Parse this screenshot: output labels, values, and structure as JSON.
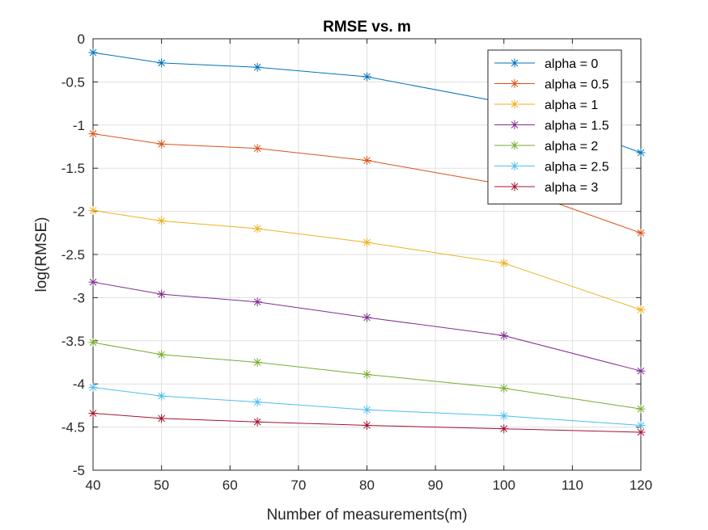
{
  "chart_data": {
    "type": "line",
    "title": "RMSE vs. m",
    "xlabel": "Number of measurements(m)",
    "ylabel": "log(RMSE)",
    "xlim": [
      40,
      120
    ],
    "ylim": [
      -5,
      0
    ],
    "xticks": [
      40,
      50,
      60,
      70,
      80,
      90,
      100,
      110,
      120
    ],
    "yticks": [
      0,
      -0.5,
      -1,
      -1.5,
      -2,
      -2.5,
      -3,
      -3.5,
      -4,
      -4.5,
      -5
    ],
    "xtick_labels": [
      "40",
      "50",
      "60",
      "70",
      "80",
      "90",
      "100",
      "110",
      "120"
    ],
    "ytick_labels": [
      "0",
      "-0.5",
      "-1",
      "-1.5",
      "-2",
      "-2.5",
      "-3",
      "-3.5",
      "-4",
      "-4.5",
      "-5"
    ],
    "grid": true,
    "legend": "top-right",
    "marker": "asterisk",
    "x": [
      40,
      50,
      64,
      80,
      100,
      120
    ],
    "series": [
      {
        "name": "alpha = 0",
        "color": "#0072BD",
        "values": [
          -0.16,
          -0.28,
          -0.33,
          -0.44,
          -0.74,
          -1.32
        ]
      },
      {
        "name": "alpha = 0.5",
        "color": "#D95319",
        "values": [
          -1.1,
          -1.22,
          -1.27,
          -1.41,
          -1.69,
          -2.25
        ]
      },
      {
        "name": "alpha = 1",
        "color": "#EDB120",
        "values": [
          -1.99,
          -2.11,
          -2.2,
          -2.36,
          -2.6,
          -3.14
        ]
      },
      {
        "name": "alpha = 1.5",
        "color": "#7E2F8E",
        "values": [
          -2.82,
          -2.96,
          -3.05,
          -3.23,
          -3.44,
          -3.85
        ]
      },
      {
        "name": "alpha = 2",
        "color": "#77AC30",
        "values": [
          -3.52,
          -3.66,
          -3.75,
          -3.89,
          -4.05,
          -4.29
        ]
      },
      {
        "name": "alpha = 2.5",
        "color": "#4DBEEE",
        "values": [
          -4.04,
          -4.14,
          -4.21,
          -4.3,
          -4.37,
          -4.48
        ]
      },
      {
        "name": "alpha = 3",
        "color": "#A2142F",
        "values": [
          -4.34,
          -4.4,
          -4.44,
          -4.48,
          -4.52,
          -4.56
        ]
      }
    ]
  }
}
